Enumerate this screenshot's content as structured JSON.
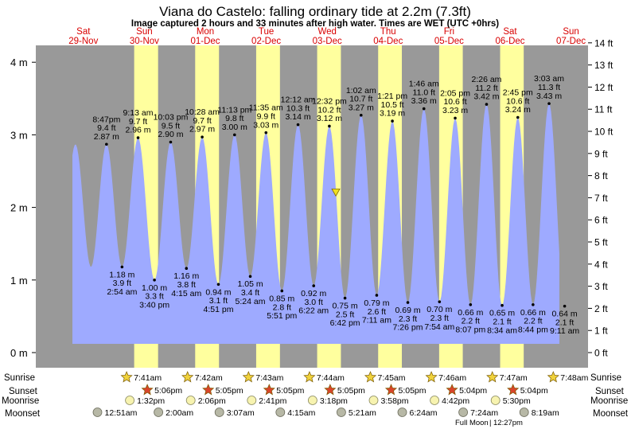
{
  "title": "Viana do Castelo: falling  ordinary tide at 2.2m (7.3ft)",
  "subtitle": "Image captured 2 hours and 33 minutes after high water. Times are WET (UTC +0hrs)",
  "colors": {
    "night": "#999999",
    "day": "#ffff9e",
    "tide": "#9eaaff",
    "day_label": "#d90000",
    "sunrise_star": "#f0d23c",
    "sunset_star": "#d9452b",
    "moonrise": "#f7f3b0",
    "moonset": "#b7b8a6"
  },
  "row_labels": {
    "sunrise": "Sunrise",
    "sunset": "Sunset",
    "moonrise": "Moonrise",
    "moonset": "Moonset"
  },
  "days": [
    {
      "dow": "Sat",
      "date": "29-Nov"
    },
    {
      "dow": "Sun",
      "date": "30-Nov"
    },
    {
      "dow": "Mon",
      "date": "01-Dec"
    },
    {
      "dow": "Tue",
      "date": "02-Dec"
    },
    {
      "dow": "Wed",
      "date": "03-Dec"
    },
    {
      "dow": "Thu",
      "date": "04-Dec"
    },
    {
      "dow": "Fri",
      "date": "05-Dec"
    },
    {
      "dow": "Sat",
      "date": "06-Dec"
    },
    {
      "dow": "Sun",
      "date": "07-Dec"
    }
  ],
  "sunrise": [
    "7:41am",
    "7:42am",
    "7:43am",
    "7:44am",
    "7:45am",
    "7:46am",
    "7:47am",
    "7:48am"
  ],
  "sunset": [
    "5:06pm",
    "5:05pm",
    "5:05pm",
    "5:05pm",
    "5:05pm",
    "5:04pm",
    "5:04pm"
  ],
  "moonrise": [
    "1:32pm",
    "2:06pm",
    "2:41pm",
    "3:18pm",
    "3:58pm",
    "4:42pm",
    "5:30pm"
  ],
  "moonset": [
    "12:51am",
    "2:00am",
    "3:07am",
    "4:15am",
    "5:21am",
    "6:24am",
    "7:24am",
    "8:19am"
  ],
  "moon_phase": "Full Moon",
  "moon_phase_time": "12:27pm",
  "chart_data": {
    "type": "area",
    "title": "Viana do Castelo: falling  ordinary tide at 2.2m (7.3ft)",
    "y_left_unit": "m",
    "y_right_unit": "ft",
    "ylim_m": [
      -0.1,
      4.3
    ],
    "yticks_m": [
      0,
      1,
      2,
      3,
      4
    ],
    "yticks_ft": [
      0,
      1,
      2,
      3,
      4,
      5,
      6,
      7,
      8,
      9,
      10,
      11,
      12,
      13,
      14
    ],
    "current": {
      "height_m": 2.2,
      "height_ft": 7.3
    },
    "tides": [
      {
        "type": "high",
        "day": "29-Nov",
        "time": "8:47pm",
        "ft": "9.4 ft",
        "m": "2.87 m",
        "h": 2.87
      },
      {
        "type": "low",
        "day": "30-Nov",
        "time": "2:54 am",
        "ft": "3.9 ft",
        "m": "1.18 m",
        "h": 1.18
      },
      {
        "type": "high",
        "day": "30-Nov",
        "time": "9:13 am",
        "ft": "9.7 ft",
        "m": "2.96 m",
        "h": 2.96
      },
      {
        "type": "low",
        "day": "30-Nov",
        "time": "3:40 pm",
        "ft": "3.3 ft",
        "m": "1.00 m",
        "h": 1.0
      },
      {
        "type": "high",
        "day": "30-Nov",
        "time": "10:03 pm",
        "ft": "9.5 ft",
        "m": "2.90 m",
        "h": 2.9
      },
      {
        "type": "low",
        "day": "01-Dec",
        "time": "4:15 am",
        "ft": "3.8 ft",
        "m": "1.16 m",
        "h": 1.16
      },
      {
        "type": "high",
        "day": "01-Dec",
        "time": "10:28 am",
        "ft": "9.7 ft",
        "m": "2.97 m",
        "h": 2.97
      },
      {
        "type": "low",
        "day": "01-Dec",
        "time": "4:51 pm",
        "ft": "3.1 ft",
        "m": "0.94 m",
        "h": 0.94
      },
      {
        "type": "high",
        "day": "01-Dec",
        "time": "11:13 pm",
        "ft": "9.8 ft",
        "m": "3.00 m",
        "h": 3.0
      },
      {
        "type": "low",
        "day": "02-Dec",
        "time": "5:24 am",
        "ft": "3.4 ft",
        "m": "1.05 m",
        "h": 1.05
      },
      {
        "type": "high",
        "day": "02-Dec",
        "time": "11:35 am",
        "ft": "9.9 ft",
        "m": "3.03 m",
        "h": 3.03
      },
      {
        "type": "low",
        "day": "02-Dec",
        "time": "5:51 pm",
        "ft": "2.8 ft",
        "m": "0.85 m",
        "h": 0.85
      },
      {
        "type": "high",
        "day": "03-Dec",
        "time": "12:12 am",
        "ft": "10.3 ft",
        "m": "3.14 m",
        "h": 3.14
      },
      {
        "type": "low",
        "day": "03-Dec",
        "time": "6:22 am",
        "ft": "3.0 ft",
        "m": "0.92 m",
        "h": 0.92
      },
      {
        "type": "high",
        "day": "03-Dec",
        "time": "12:32 pm",
        "ft": "10.2 ft",
        "m": "3.12 m",
        "h": 3.12
      },
      {
        "type": "low",
        "day": "03-Dec",
        "time": "6:42 pm",
        "ft": "2.5 ft",
        "m": "0.75 m",
        "h": 0.75
      },
      {
        "type": "high",
        "day": "04-Dec",
        "time": "1:02 am",
        "ft": "10.7 ft",
        "m": "3.27 m",
        "h": 3.27
      },
      {
        "type": "low",
        "day": "04-Dec",
        "time": "7:11 am",
        "ft": "2.6 ft",
        "m": "0.79 m",
        "h": 0.79
      },
      {
        "type": "high",
        "day": "04-Dec",
        "time": "1:21 pm",
        "ft": "10.5 ft",
        "m": "3.19 m",
        "h": 3.19
      },
      {
        "type": "low",
        "day": "04-Dec",
        "time": "7:26 pm",
        "ft": "2.3 ft",
        "m": "0.69 m",
        "h": 0.69
      },
      {
        "type": "high",
        "day": "05-Dec",
        "time": "1:46 am",
        "ft": "11.0 ft",
        "m": "3.36 m",
        "h": 3.36
      },
      {
        "type": "low",
        "day": "05-Dec",
        "time": "7:54 am",
        "ft": "2.3 ft",
        "m": "0.70 m",
        "h": 0.7
      },
      {
        "type": "high",
        "day": "05-Dec",
        "time": "2:05 pm",
        "ft": "10.6 ft",
        "m": "3.23 m",
        "h": 3.23
      },
      {
        "type": "low",
        "day": "05-Dec",
        "time": "8:07 pm",
        "ft": "2.2 ft",
        "m": "0.66 m",
        "h": 0.66
      },
      {
        "type": "high",
        "day": "06-Dec",
        "time": "2:26 am",
        "ft": "11.2 ft",
        "m": "3.42 m",
        "h": 3.42
      },
      {
        "type": "low",
        "day": "06-Dec",
        "time": "8:34 am",
        "ft": "2.1 ft",
        "m": "0.65 m",
        "h": 0.65
      },
      {
        "type": "high",
        "day": "06-Dec",
        "time": "2:45 pm",
        "ft": "10.6 ft",
        "m": "3.24 m",
        "h": 3.24
      },
      {
        "type": "low",
        "day": "06-Dec",
        "time": "8:44 pm",
        "ft": "2.2 ft",
        "m": "0.66 m",
        "h": 0.66
      },
      {
        "type": "high",
        "day": "07-Dec",
        "time": "3:03 am",
        "ft": "11.3 ft",
        "m": "3.43 m",
        "h": 3.43
      },
      {
        "type": "low",
        "day": "07-Dec",
        "time": "9:11 am",
        "ft": "2.1 ft",
        "m": "0.64 m",
        "h": 0.64
      }
    ]
  }
}
